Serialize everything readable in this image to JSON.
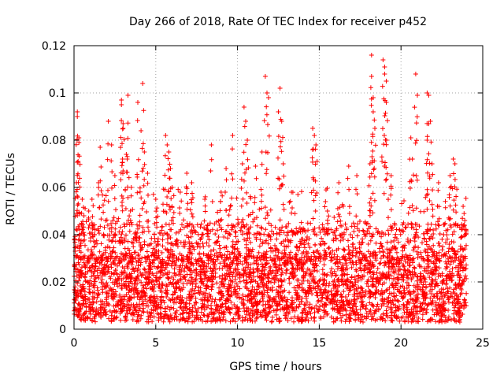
{
  "chart_data": {
    "type": "scatter",
    "title": "Day 266 of 2018, Rate Of TEC Index for receiver p452",
    "xlabel": "GPS time / hours",
    "ylabel": "ROTI / TECUs",
    "xlim": [
      0,
      25
    ],
    "ylim": [
      0,
      0.12
    ],
    "grid": true,
    "marker": "+",
    "color": "#ff0000",
    "x_ticks": [
      0,
      5,
      10,
      15,
      20,
      25
    ],
    "x_tick_labels": [
      "0",
      "5",
      "10",
      "15",
      "20",
      "25"
    ],
    "y_ticks": [
      0,
      0.02,
      0.04,
      0.06,
      0.08,
      0.1,
      0.12
    ],
    "y_tick_labels": [
      "0",
      "0.02",
      "0.04",
      "0.06",
      "0.08",
      "0.1",
      "0.12"
    ],
    "data_extent": {
      "x_min": 0,
      "x_max": 24,
      "y_min": 0.002,
      "y_max": 0.116
    },
    "series": [
      {
        "name": "p452",
        "points": [
          [
            0.2,
            0.092
          ],
          [
            0.2,
            0.09
          ],
          [
            0.3,
            0.081
          ],
          [
            0.3,
            0.079
          ],
          [
            0.25,
            0.071
          ],
          [
            0.15,
            0.062
          ],
          [
            0.5,
            0.055
          ],
          [
            0.9,
            0.05
          ],
          [
            1.1,
            0.055
          ],
          [
            1.5,
            0.062
          ],
          [
            1.6,
            0.077
          ],
          [
            2.1,
            0.088
          ],
          [
            2.3,
            0.078
          ],
          [
            2.5,
            0.065
          ],
          [
            2.9,
            0.097
          ],
          [
            2.9,
            0.095
          ],
          [
            3.0,
            0.087
          ],
          [
            3.0,
            0.085
          ],
          [
            3.2,
            0.074
          ],
          [
            3.25,
            0.072
          ],
          [
            3.3,
            0.099
          ],
          [
            3.5,
            0.06
          ],
          [
            3.9,
            0.096
          ],
          [
            4.1,
            0.084
          ],
          [
            4.2,
            0.104
          ],
          [
            4.3,
            0.075
          ],
          [
            4.5,
            0.066
          ],
          [
            5.0,
            0.055
          ],
          [
            5.6,
            0.082
          ],
          [
            5.7,
            0.078
          ],
          [
            5.8,
            0.075
          ],
          [
            5.9,
            0.068
          ],
          [
            6.0,
            0.06
          ],
          [
            6.5,
            0.058
          ],
          [
            6.9,
            0.066
          ],
          [
            7.2,
            0.062
          ],
          [
            8.0,
            0.055
          ],
          [
            8.4,
            0.078
          ],
          [
            9.0,
            0.058
          ],
          [
            9.3,
            0.068
          ],
          [
            9.7,
            0.082
          ],
          [
            10.4,
            0.094
          ],
          [
            10.5,
            0.088
          ],
          [
            10.6,
            0.08
          ],
          [
            10.3,
            0.07
          ],
          [
            11.1,
            0.069
          ],
          [
            11.5,
            0.075
          ],
          [
            11.7,
            0.107
          ],
          [
            11.8,
            0.1
          ],
          [
            11.9,
            0.098
          ],
          [
            12.5,
            0.092
          ],
          [
            12.6,
            0.102
          ],
          [
            12.7,
            0.088
          ],
          [
            12.8,
            0.07
          ],
          [
            13.3,
            0.058
          ],
          [
            14.6,
            0.085
          ],
          [
            14.7,
            0.082
          ],
          [
            14.8,
            0.078
          ],
          [
            14.6,
            0.076
          ],
          [
            15.5,
            0.05
          ],
          [
            16.2,
            0.062
          ],
          [
            16.8,
            0.069
          ],
          [
            17.3,
            0.065
          ],
          [
            18.2,
            0.116
          ],
          [
            18.2,
            0.107
          ],
          [
            18.3,
            0.098
          ],
          [
            18.3,
            0.092
          ],
          [
            18.4,
            0.085
          ],
          [
            18.1,
            0.07
          ],
          [
            18.9,
            0.114
          ],
          [
            19.0,
            0.111
          ],
          [
            19.0,
            0.108
          ],
          [
            19.1,
            0.105
          ],
          [
            19.1,
            0.096
          ],
          [
            19.4,
            0.065
          ],
          [
            20.6,
            0.081
          ],
          [
            20.9,
            0.108
          ],
          [
            21.0,
            0.099
          ],
          [
            20.7,
            0.072
          ],
          [
            21.6,
            0.1
          ],
          [
            21.7,
            0.099
          ],
          [
            21.8,
            0.088
          ],
          [
            21.6,
            0.08
          ],
          [
            21.9,
            0.07
          ],
          [
            22.3,
            0.062
          ],
          [
            23.2,
            0.072
          ],
          [
            23.3,
            0.07
          ],
          [
            23.0,
            0.065
          ],
          [
            23.8,
            0.052
          ],
          [
            23.9,
            0.046
          ]
        ],
        "dense_band": {
          "x_range": [
            0,
            24
          ],
          "core_y_range": [
            0.003,
            0.03
          ],
          "spread_y_max": 0.06
        }
      }
    ]
  }
}
